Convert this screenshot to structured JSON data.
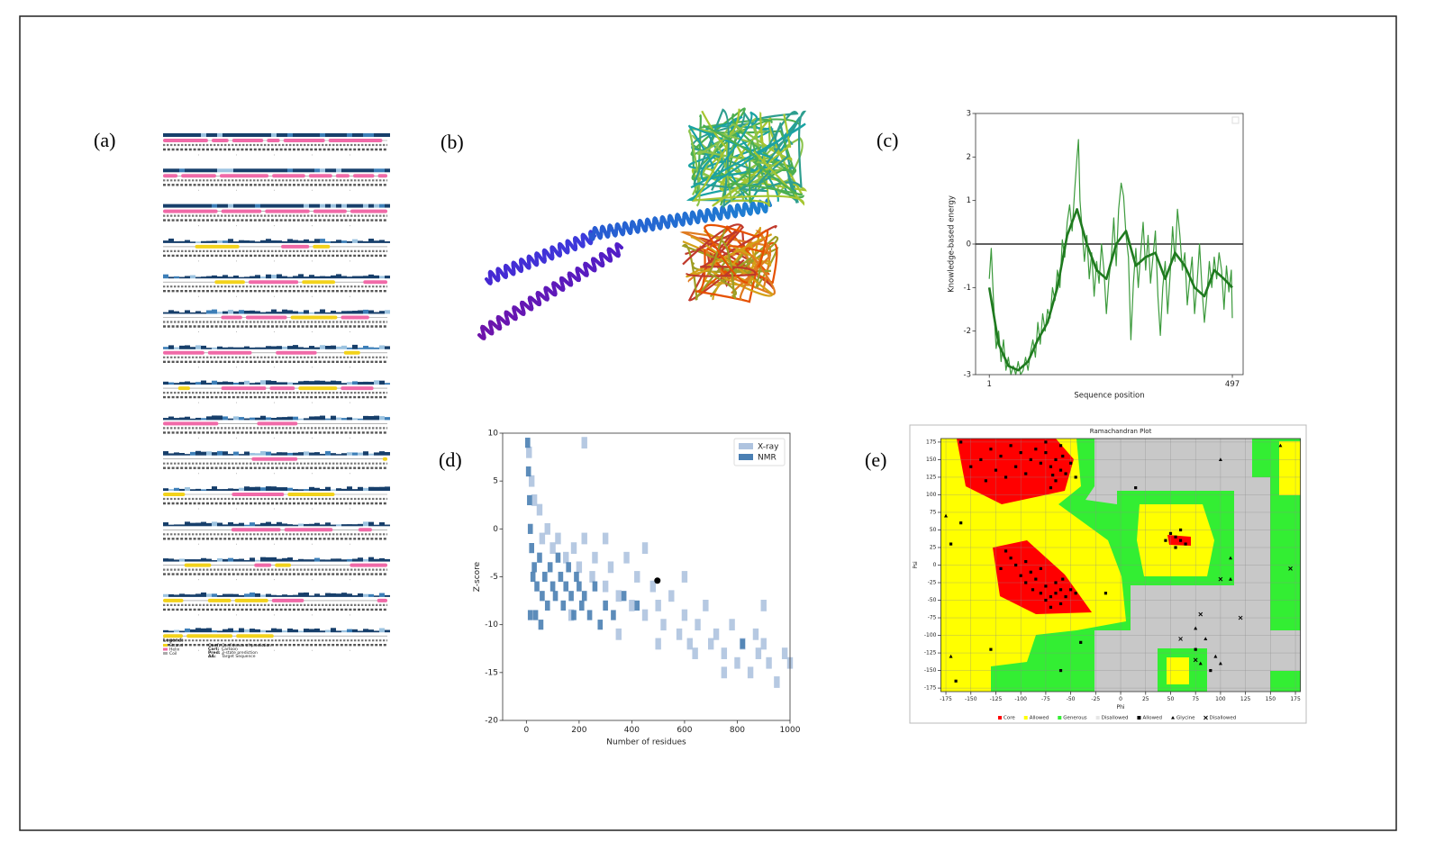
{
  "panel_labels": [
    "(a)",
    "(b)",
    "(c)",
    "(d)",
    "(e)"
  ],
  "sequence_panel": {
    "legend_title": "Legend:",
    "items": [
      {
        "name": "Strand",
        "color": "#f2d21b"
      },
      {
        "name": "Helix",
        "color": "#f06aa8"
      },
      {
        "name": "Coil",
        "color": "#aaaaaa"
      }
    ],
    "keys": [
      {
        "key": "Conf:",
        "text": "Confidence of prediction"
      },
      {
        "key": "Cart:",
        "text": "Cartoon"
      },
      {
        "key": "Pred:",
        "text": "3-state prediction"
      },
      {
        "key": "AA:",
        "text": "Target Sequence"
      }
    ]
  },
  "chart_data": [
    {
      "type": "line",
      "xlabel": "Sequence position",
      "ylabel": "Knowledge-based energy",
      "xlim": [
        -27,
        519
      ],
      "ylim": [
        -3,
        3
      ],
      "xticks": [
        1,
        497
      ],
      "yticks": [
        -3,
        -2,
        -1,
        0,
        1,
        2,
        3
      ],
      "hline": 0,
      "series": [
        {
          "color": "#3c9a3c",
          "width": 1.2,
          "x": [
            1,
            5,
            10,
            15,
            20,
            25,
            30,
            35,
            40,
            45,
            50,
            55,
            60,
            65,
            70,
            75,
            80,
            85,
            90,
            95,
            100,
            105,
            110,
            115,
            120,
            125,
            130,
            135,
            140,
            145,
            150,
            155,
            160,
            165,
            170,
            175,
            180,
            183,
            186,
            190,
            195,
            200,
            205,
            210,
            215,
            220,
            225,
            230,
            235,
            240,
            245,
            250,
            255,
            260,
            265,
            270,
            275,
            280,
            285,
            290,
            295,
            300,
            305,
            310,
            315,
            320,
            325,
            330,
            335,
            340,
            345,
            350,
            355,
            360,
            365,
            370,
            375,
            380,
            385,
            390,
            395,
            400,
            405,
            410,
            415,
            420,
            425,
            430,
            435,
            440,
            445,
            450,
            455,
            460,
            465,
            470,
            475,
            480,
            485,
            490,
            495,
            497
          ],
          "values": [
            -0.8,
            -0.1,
            -1.4,
            -2.4,
            -2.0,
            -2.7,
            -2.2,
            -2.9,
            -2.6,
            -3.0,
            -2.8,
            -3.0,
            -2.7,
            -3.0,
            -2.9,
            -2.6,
            -2.9,
            -2.5,
            -2.2,
            -2.6,
            -1.8,
            -2.3,
            -1.6,
            -2.0,
            -1.5,
            -1.7,
            -1.0,
            -1.3,
            -0.6,
            -1.0,
            0.1,
            -0.3,
            0.5,
            0.9,
            0.3,
            1.2,
            2.0,
            2.4,
            1.0,
            0.4,
            -0.4,
            0.2,
            -0.8,
            -0.2,
            -1.2,
            -0.4,
            -0.9,
            0.0,
            -0.6,
            -1.6,
            -0.8,
            -0.3,
            0.6,
            -0.5,
            0.8,
            1.4,
            1.1,
            0.2,
            -0.3,
            -2.2,
            -0.9,
            -0.1,
            -1.0,
            -0.2,
            0.5,
            -0.6,
            0.2,
            -0.9,
            -0.3,
            0.3,
            -1.2,
            -2.1,
            -1.0,
            -0.4,
            -1.6,
            -0.7,
            0.4,
            -0.4,
            0.8,
            0.2,
            -0.6,
            -0.2,
            -1.4,
            -0.8,
            -0.3,
            -1.6,
            -0.9,
            0.0,
            -1.0,
            -1.8,
            -1.2,
            -0.4,
            -1.0,
            -0.3,
            -0.8,
            -0.2,
            -0.6,
            -1.5,
            -0.5,
            -1.1,
            -0.6,
            -1.7
          ]
        },
        {
          "color": "#1f7a1f",
          "width": 2.6,
          "x": [
            1,
            20,
            40,
            60,
            80,
            100,
            120,
            140,
            160,
            180,
            200,
            220,
            240,
            260,
            280,
            300,
            320,
            340,
            360,
            380,
            400,
            420,
            440,
            460,
            480,
            497
          ],
          "values": [
            -1.0,
            -2.3,
            -2.8,
            -2.9,
            -2.7,
            -2.2,
            -1.8,
            -1.0,
            0.2,
            0.8,
            0.0,
            -0.6,
            -0.8,
            0.0,
            0.3,
            -0.5,
            -0.3,
            -0.2,
            -0.8,
            -0.2,
            -0.5,
            -1.0,
            -1.2,
            -0.6,
            -0.8,
            -1.0
          ]
        }
      ]
    },
    {
      "type": "scatter",
      "xlabel": "Number of residues",
      "ylabel": "Z-score",
      "xlim": [
        -90,
        1000
      ],
      "ylim": [
        -20,
        10
      ],
      "xticks": [
        0,
        200,
        400,
        600,
        800,
        1000
      ],
      "yticks": [
        -20,
        -15,
        -10,
        -5,
        0,
        5,
        10
      ],
      "legend": "upper right",
      "series": [
        {
          "name": "X-ray",
          "color": "#aec3df",
          "x": [
            10,
            20,
            30,
            50,
            60,
            80,
            100,
            120,
            150,
            180,
            200,
            220,
            250,
            260,
            300,
            320,
            350,
            380,
            400,
            420,
            450,
            480,
            500,
            520,
            550,
            580,
            600,
            620,
            650,
            680,
            700,
            720,
            750,
            780,
            800,
            820,
            850,
            880,
            900,
            920,
            950,
            980,
            1000,
            220,
            300,
            450,
            600,
            750,
            870,
            170,
            350,
            500,
            640,
            900
          ],
          "values": [
            8,
            5,
            3,
            2,
            -1,
            0,
            -2,
            -1,
            -3,
            -2,
            -4,
            -1,
            -5,
            -3,
            -6,
            -4,
            -7,
            -3,
            -8,
            -5,
            -9,
            -6,
            -8,
            -10,
            -7,
            -11,
            -9,
            -12,
            -10,
            -8,
            -12,
            -11,
            -13,
            -10,
            -14,
            -12,
            -15,
            -13,
            -12,
            -14,
            -16,
            -13,
            -14,
            9,
            -1,
            -2,
            -5,
            -15,
            -11,
            -9,
            -11,
            -12,
            -13,
            -8
          ]
        },
        {
          "name": "NMR",
          "color": "#4a7fb3",
          "x": [
            5,
            8,
            12,
            15,
            20,
            25,
            30,
            40,
            50,
            60,
            70,
            80,
            90,
            100,
            110,
            120,
            130,
            140,
            150,
            160,
            170,
            180,
            190,
            200,
            210,
            220,
            240,
            260,
            280,
            300,
            330,
            370,
            420,
            820,
            15,
            35,
            55
          ],
          "values": [
            9,
            6,
            3,
            0,
            -2,
            -5,
            -4,
            -6,
            -3,
            -7,
            -5,
            -8,
            -4,
            -6,
            -7,
            -3,
            -5,
            -8,
            -6,
            -4,
            -7,
            -9,
            -5,
            -6,
            -8,
            -7,
            -9,
            -6,
            -10,
            -8,
            -9,
            -7,
            -8,
            -12,
            -9,
            -9,
            -10
          ]
        }
      ],
      "marker": {
        "x": 497,
        "y": -5.4,
        "color": "#000000"
      }
    },
    {
      "type": "ramachandran",
      "title": "Ramachandran Plot",
      "xlabel": "Phi",
      "ylabel": "Psi",
      "xlim": [
        -180,
        180
      ],
      "ylim": [
        -180,
        180
      ],
      "xticks": [
        -175,
        -150,
        -125,
        -100,
        -75,
        -50,
        -25,
        0,
        25,
        50,
        75,
        100,
        125,
        150,
        175
      ],
      "yticks": [
        -175,
        -150,
        -125,
        -100,
        -75,
        -50,
        -25,
        0,
        25,
        50,
        75,
        100,
        125,
        150,
        175
      ],
      "grid": true,
      "regions": [
        {
          "name": "Core",
          "color": "#ff0000"
        },
        {
          "name": "Allowed",
          "color": "#ffff00"
        },
        {
          "name": "Generous",
          "color": "#33ee33"
        },
        {
          "name": "Disallowed",
          "color": "#e6e6e6"
        }
      ],
      "series": [
        {
          "name": "Allowed",
          "marker": "square",
          "color": "#000000",
          "x": [
            -70,
            -65,
            -60,
            -75,
            -80,
            -55,
            -85,
            -90,
            -100,
            -110,
            -120,
            -130,
            -140,
            -150,
            -65,
            -70,
            -60,
            -50,
            -45,
            -95,
            -105,
            -115,
            -125,
            -135,
            -75,
            -160,
            -58,
            -68,
            -65,
            -60,
            -70,
            -75,
            -55,
            -80,
            -85,
            -90,
            -95,
            -100,
            -105,
            -110,
            -60,
            -70,
            -65,
            -50,
            -45,
            -75,
            -88,
            -95,
            -115,
            -120,
            -80,
            -58,
            55,
            60,
            50,
            65,
            55,
            60,
            45,
            -165,
            -60,
            -170,
            -160,
            -130,
            -40,
            -15,
            15,
            75,
            90
          ],
          "values": [
            140,
            150,
            135,
            160,
            145,
            130,
            165,
            150,
            160,
            170,
            155,
            165,
            150,
            140,
            120,
            110,
            170,
            145,
            125,
            130,
            140,
            125,
            135,
            120,
            175,
            175,
            155,
            128,
            -40,
            -35,
            -45,
            -30,
            -45,
            -40,
            -20,
            -10,
            5,
            -15,
            0,
            10,
            -55,
            -60,
            -25,
            -35,
            -40,
            -50,
            -35,
            -25,
            20,
            -5,
            -5,
            -20,
            40,
            35,
            45,
            30,
            25,
            50,
            35,
            -165,
            -150,
            30,
            60,
            -120,
            -110,
            -40,
            110,
            -120,
            -150
          ]
        },
        {
          "name": "Glycine",
          "marker": "triangle",
          "color": "#000000",
          "x": [
            80,
            95,
            100,
            110,
            110,
            160,
            100,
            -175,
            -170,
            75,
            85
          ],
          "values": [
            -140,
            -130,
            -140,
            10,
            -20,
            170,
            150,
            70,
            -130,
            -90,
            -105
          ]
        },
        {
          "name": "Disallowed",
          "marker": "cross",
          "color": "#000000",
          "x": [
            80,
            75,
            120,
            170,
            60,
            100
          ],
          "values": [
            -70,
            -135,
            -75,
            -5,
            -105,
            -20
          ]
        }
      ]
    }
  ]
}
